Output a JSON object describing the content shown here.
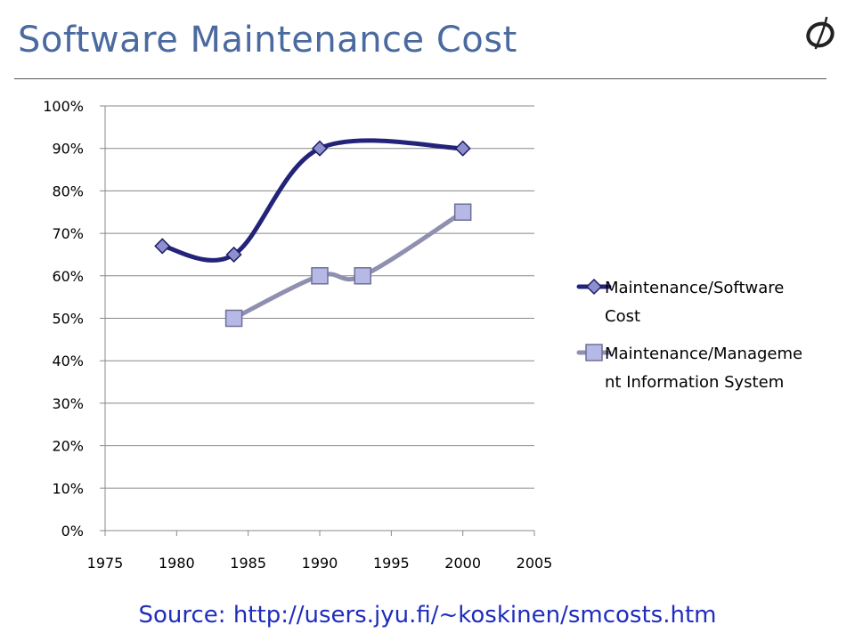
{
  "slide": {
    "title": "Software Maintenance Cost",
    "source": "Source: http://users.jyu.fi/~koskinen/smcosts.htm"
  },
  "colors": {
    "title": "#4a6aa0",
    "series1": "#23237a",
    "series2": "#8f8fb0",
    "source": "#1f2dbd",
    "grid": "#888888"
  },
  "logo": {
    "icon": "script-O-logo-icon"
  },
  "chart_data": {
    "type": "line",
    "title": "",
    "xlabel": "",
    "ylabel": "",
    "xlim": [
      1975,
      2005
    ],
    "ylim": [
      0,
      100
    ],
    "x_ticks": [
      "1975",
      "1980",
      "1985",
      "1990",
      "1995",
      "2000",
      "2005"
    ],
    "y_ticks": [
      "0%",
      "10%",
      "20%",
      "30%",
      "40%",
      "50%",
      "60%",
      "70%",
      "80%",
      "90%",
      "100%"
    ],
    "grid": "horizontal",
    "legend_position": "right",
    "series": [
      {
        "name": "Maintenance/Software Cost",
        "legend_lines": [
          "Maintenance/Software",
          "Cost"
        ],
        "marker": "diamond",
        "smooth": true,
        "points": [
          [
            1979,
            67
          ],
          [
            1984,
            65
          ],
          [
            1990,
            90
          ],
          [
            2000,
            90
          ]
        ]
      },
      {
        "name": "Maintenance/Management Information System",
        "legend_lines": [
          "Maintenance/Manageme",
          "nt Information System"
        ],
        "marker": "square",
        "smooth": true,
        "points": [
          [
            1984,
            50
          ],
          [
            1990,
            60
          ],
          [
            1993,
            60
          ],
          [
            2000,
            75
          ]
        ]
      }
    ]
  }
}
